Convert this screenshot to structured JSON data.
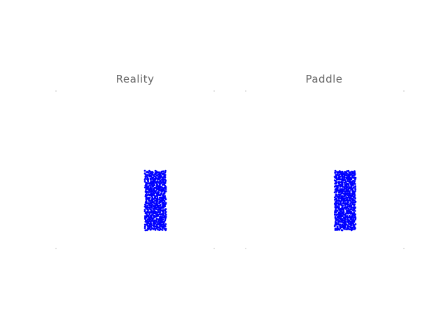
{
  "panels": [
    {
      "title": "Reality"
    },
    {
      "title": "Paddle"
    }
  ],
  "particle_color": "#0000ff",
  "frame_corner_color": "#cccccc"
}
